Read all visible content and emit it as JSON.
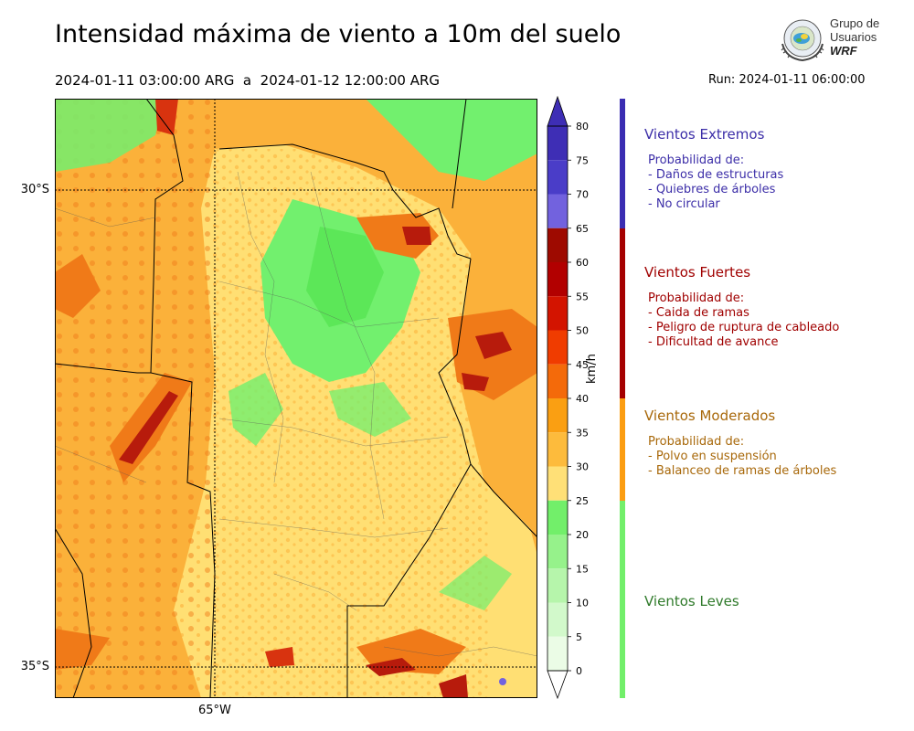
{
  "header": {
    "title": "Intensidad máxima de viento a 10m del suelo",
    "period": "2024-01-11 03:00:00 ARG  a  2024-01-12 12:00:00 ARG",
    "run": "Run: 2024-01-11 06:00:00"
  },
  "logo": {
    "line1": "Grupo de",
    "line2": "Usuarios",
    "line3": "WRF"
  },
  "map": {
    "lat_labels": [
      "30°S",
      "35°S"
    ],
    "lon_labels": [
      "65°W"
    ],
    "wind_fields": {
      "light": "#72f06e",
      "moderate_low": "#ffdf73",
      "moderate_high": "#fbb13a",
      "strong_low": "#f07a18",
      "strong_high": "#b71b0c"
    }
  },
  "colorbar": {
    "units": "km/h",
    "ticks": [
      "80",
      "75",
      "70",
      "65",
      "60",
      "55",
      "50",
      "45",
      "40",
      "35",
      "30",
      "25",
      "20",
      "15",
      "10",
      "5",
      "0"
    ],
    "segments": [
      {
        "from": 75,
        "to": 80,
        "color": "#3e2eb5"
      },
      {
        "from": 70,
        "to": 75,
        "color": "#4a3dc8"
      },
      {
        "from": 65,
        "to": 70,
        "color": "#7262de"
      },
      {
        "from": 60,
        "to": 65,
        "color": "#9e0a00"
      },
      {
        "from": 55,
        "to": 60,
        "color": "#b20000"
      },
      {
        "from": 50,
        "to": 55,
        "color": "#d31400"
      },
      {
        "from": 45,
        "to": 50,
        "color": "#f03c00"
      },
      {
        "from": 40,
        "to": 45,
        "color": "#f46a0a"
      },
      {
        "from": 35,
        "to": 40,
        "color": "#fa9f12"
      },
      {
        "from": 30,
        "to": 35,
        "color": "#fdbb3c"
      },
      {
        "from": 25,
        "to": 30,
        "color": "#ffe077"
      },
      {
        "from": 20,
        "to": 25,
        "color": "#72ef6a"
      },
      {
        "from": 15,
        "to": 20,
        "color": "#96f28b"
      },
      {
        "from": 10,
        "to": 15,
        "color": "#b6f5ab"
      },
      {
        "from": 5,
        "to": 10,
        "color": "#d2f9cb"
      },
      {
        "from": 0,
        "to": 5,
        "color": "#ebfce6"
      }
    ]
  },
  "categories": [
    {
      "name": "Vientos Extremos",
      "color": "#3c2ea8",
      "bar_color": "#3a2db2",
      "description": "Probabilidad de:\n- Daños de estructuras\n- Quiebres de árboles\n- No circular"
    },
    {
      "name": "Vientos Fuertes",
      "color": "#a00000",
      "bar_color": "#a50000",
      "description": "Probabilidad de:\n- Caida de ramas\n- Peligro de ruptura de cableado\n- Dificultad de avance"
    },
    {
      "name": "Vientos Moderados",
      "color": "#a8680a",
      "bar_color": "#fb9d12",
      "description": "Probabilidad de:\n- Polvo en suspensión\n- Balanceo de ramas de árboles"
    },
    {
      "name": "Vientos Leves",
      "color": "#2f7a2a",
      "bar_color": "#72ef6a",
      "description": ""
    }
  ]
}
